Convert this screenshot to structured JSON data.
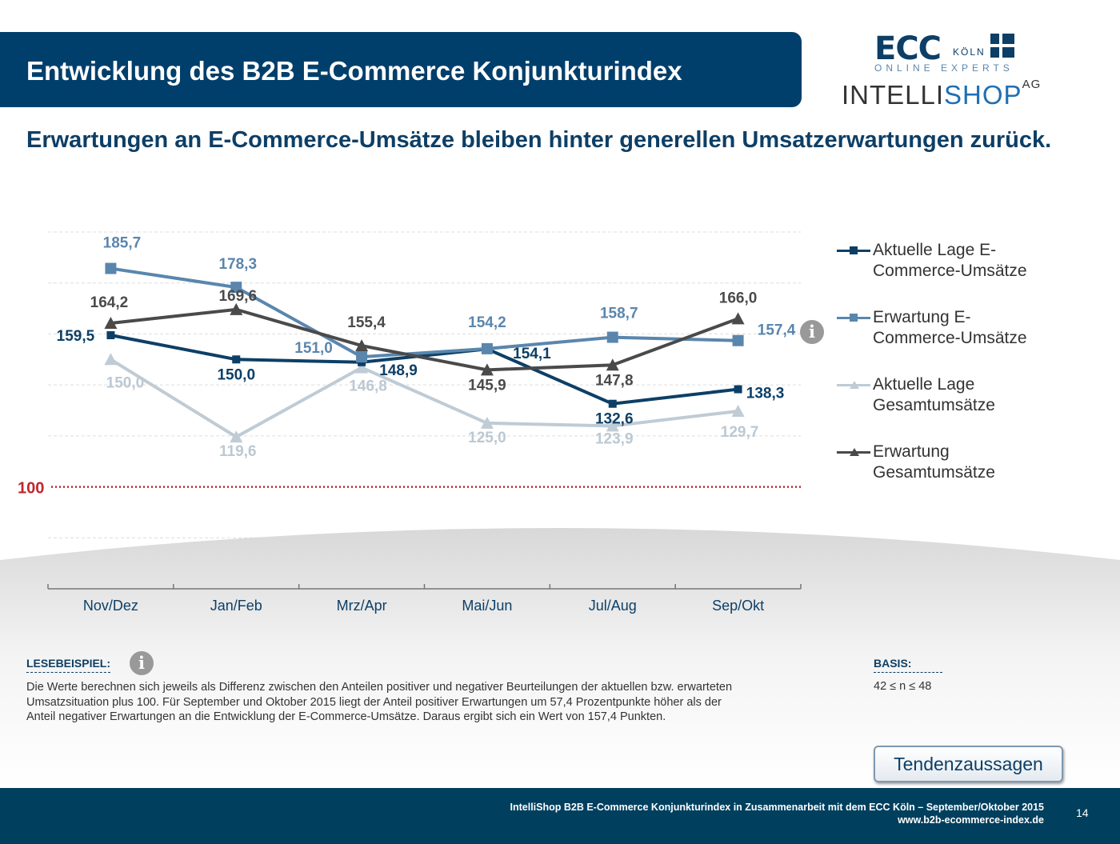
{
  "header": {
    "title": "Entwicklung des B2B E-Commerce Konjunkturindex",
    "subtitle": "Erwartungen an E-Commerce-Umsätze bleiben hinter generellen Umsatzerwartungen zurück."
  },
  "logos": {
    "ecc": "ECC",
    "ecc_city": "KÖLN",
    "ecc_tagline": "ONLINE EXPERTS",
    "intellishop_a": "INTELLI",
    "intellishop_b": "SHOP",
    "intellishop_ag": "AG"
  },
  "chart_data": {
    "type": "line",
    "categories": [
      "Nov/Dez",
      "Jan/Feb",
      "Mrz/Apr",
      "Mai/Jun",
      "Jul/Aug",
      "Sep/Okt"
    ],
    "ylim": [
      60,
      200
    ],
    "grid": true,
    "legend_position": "right",
    "reference_line": {
      "value": 100,
      "label": "100",
      "color": "#c0262d"
    },
    "series": [
      {
        "name": "Aktuelle Lage E-Commerce-Umsätze",
        "color": "#0d3f66",
        "marker": "square-small",
        "values": [
          159.5,
          150.0,
          148.9,
          154.1,
          132.6,
          138.3
        ],
        "labels": [
          "159,5",
          "150,0",
          "148,9",
          "154,1",
          "132,6",
          "138,3"
        ]
      },
      {
        "name": "Erwartung E-Commerce-Umsätze",
        "color": "#5a86ad",
        "marker": "square",
        "values": [
          185.7,
          178.3,
          151.0,
          154.2,
          158.7,
          157.4
        ],
        "labels": [
          "185,7",
          "178,3",
          "151,0",
          "154,2",
          "158,7",
          "157,4"
        ]
      },
      {
        "name": "Aktuelle Lage Gesamtumsätze",
        "color": "#bfcbd5",
        "marker": "triangle",
        "values": [
          150.0,
          119.6,
          146.8,
          125.0,
          123.9,
          129.7
        ],
        "labels": [
          "150,0",
          "119,6",
          "146,8",
          "125,0",
          "123,9",
          "129,7"
        ]
      },
      {
        "name": "Erwartung Gesamtumsätze",
        "color": "#4a4a4a",
        "marker": "triangle",
        "values": [
          164.2,
          169.6,
          155.4,
          145.9,
          147.8,
          166.0
        ],
        "labels": [
          "164,2",
          "169,6",
          "155,4",
          "145,9",
          "147,8",
          "166,0"
        ]
      }
    ],
    "legend": [
      {
        "line1": "Aktuelle Lage E-",
        "line2": "Commerce-Umsätze"
      },
      {
        "line1": "Erwartung E-",
        "line2": "Commerce-Umsätze"
      },
      {
        "line1": "Aktuelle Lage",
        "line2": "Gesamtumsätze"
      },
      {
        "line1": "Erwartung",
        "line2": "Gesamtumsätze"
      }
    ]
  },
  "reading": {
    "label": "LESEBEISPIEL:",
    "text": "Die Werte berechnen sich jeweils als Differenz zwischen den Anteilen positiver und negativer Beurteilungen der aktuellen bzw. erwarteten Umsatzsituation plus 100. Für September und Oktober 2015 liegt der Anteil positiver Erwartungen um 57,4 Prozentpunkte höher als der Anteil negativer Erwartungen an die Entwicklung der E-Commerce-Umsätze. Daraus ergibt sich ein Wert von 157,4 Punkten."
  },
  "basis": {
    "label": "BASIS:",
    "value": "42 ≤ n ≤ 48"
  },
  "button": {
    "label": "Tendenzaussagen"
  },
  "footer": {
    "line1": "IntelliShop B2B E-Commerce Konjunkturindex in Zusammenarbeit mit dem ECC Köln –  September/Oktober 2015",
    "line2": "www.b2b-ecommerce-index.de",
    "page": "14"
  },
  "icons": {
    "info": "i"
  }
}
